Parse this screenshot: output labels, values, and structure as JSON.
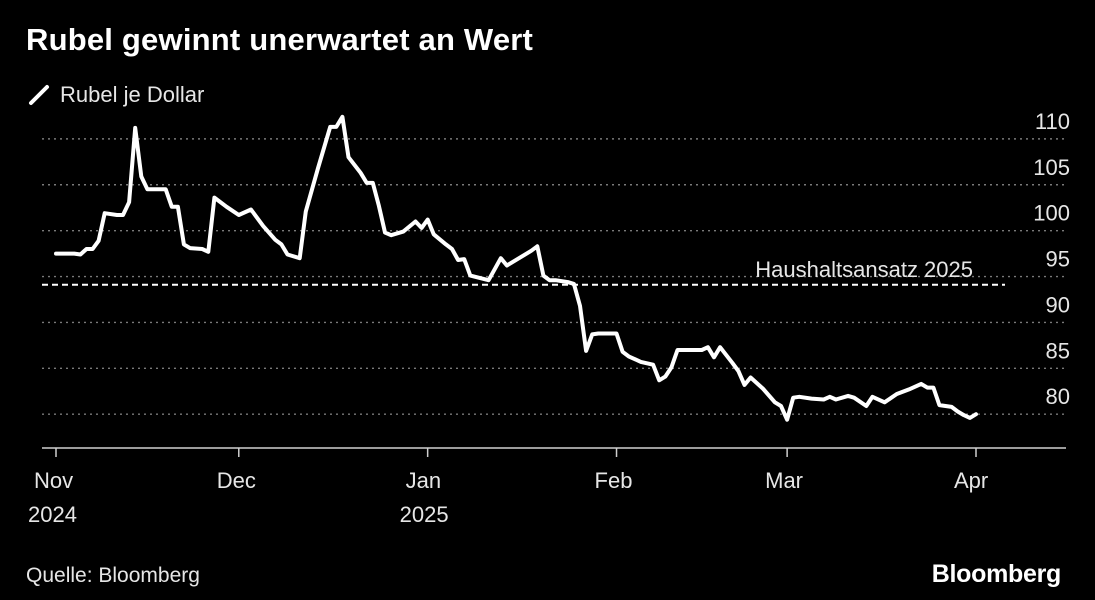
{
  "title": "Rubel gewinnt unerwartet an Wert",
  "legend_label": "Rubel je Dollar",
  "source": "Quelle: Bloomberg",
  "brand": "Bloomberg",
  "colors": {
    "background": "#000000",
    "line": "#ffffff",
    "grid": "#7a7a7a",
    "text": "#e6e6e6"
  },
  "chart_data": {
    "type": "line",
    "title": "Rubel gewinnt unerwartet an Wert",
    "xlabel": "",
    "ylabel": "",
    "ylim": [
      78.5,
      112.6
    ],
    "y_ticks": [
      80,
      85,
      90,
      95,
      100,
      105,
      110
    ],
    "x_ticks": [
      {
        "day": 0,
        "line1": "Nov",
        "line2": "2024"
      },
      {
        "day": 30,
        "line1": "Dec",
        "line2": ""
      },
      {
        "day": 61,
        "line1": "Jan",
        "line2": "2025"
      },
      {
        "day": 92,
        "line1": "Feb",
        "line2": ""
      },
      {
        "day": 120,
        "line1": "Mar",
        "line2": ""
      },
      {
        "day": 151,
        "line1": "Apr",
        "line2": ""
      }
    ],
    "reference_line": {
      "value": 94.1,
      "label": "Haushaltsansatz 2025"
    },
    "series": [
      {
        "name": "Rubel je Dollar",
        "x_unit": "days since 1 Nov 2024",
        "points": [
          [
            0,
            97.5
          ],
          [
            3,
            97.5
          ],
          [
            4,
            97.4
          ],
          [
            5,
            98.0
          ],
          [
            6,
            98.0
          ],
          [
            7,
            98.9
          ],
          [
            8,
            101.9
          ],
          [
            10,
            101.7
          ],
          [
            11,
            101.7
          ],
          [
            12,
            103.1
          ],
          [
            13,
            111.2
          ],
          [
            14,
            105.9
          ],
          [
            15,
            104.5
          ],
          [
            18,
            104.5
          ],
          [
            19,
            102.6
          ],
          [
            20,
            102.6
          ],
          [
            21,
            98.5
          ],
          [
            22,
            98.1
          ],
          [
            24,
            98.0
          ],
          [
            25,
            97.7
          ],
          [
            26,
            103.6
          ],
          [
            28,
            102.6
          ],
          [
            30,
            101.7
          ],
          [
            32,
            102.3
          ],
          [
            34,
            100.5
          ],
          [
            36,
            99.0
          ],
          [
            37,
            98.5
          ],
          [
            38,
            97.4
          ],
          [
            40,
            97.0
          ],
          [
            41,
            102.1
          ],
          [
            43,
            106.8
          ],
          [
            45,
            111.3
          ],
          [
            46,
            111.3
          ],
          [
            47,
            112.4
          ],
          [
            48,
            108.0
          ],
          [
            50,
            106.3
          ],
          [
            51,
            105.2
          ],
          [
            52,
            105.2
          ],
          [
            53,
            102.7
          ],
          [
            54,
            99.8
          ],
          [
            55,
            99.5
          ],
          [
            57,
            99.9
          ],
          [
            59,
            101.0
          ],
          [
            60,
            100.3
          ],
          [
            61,
            101.2
          ],
          [
            62,
            99.6
          ],
          [
            64,
            98.5
          ],
          [
            65,
            98.0
          ],
          [
            66,
            96.8
          ],
          [
            67,
            96.9
          ],
          [
            68,
            95.1
          ],
          [
            71,
            94.6
          ],
          [
            73,
            97.0
          ],
          [
            74,
            96.2
          ],
          [
            78,
            97.8
          ],
          [
            79,
            98.3
          ],
          [
            80,
            95.1
          ],
          [
            81,
            94.6
          ],
          [
            82,
            94.6
          ],
          [
            84,
            94.4
          ],
          [
            85,
            94.2
          ],
          [
            86,
            91.8
          ],
          [
            87,
            86.9
          ],
          [
            88,
            88.7
          ],
          [
            89,
            88.8
          ],
          [
            92,
            88.8
          ],
          [
            93,
            86.8
          ],
          [
            94,
            86.3
          ],
          [
            96,
            85.7
          ],
          [
            98,
            85.4
          ],
          [
            99,
            83.7
          ],
          [
            100,
            84.1
          ],
          [
            101,
            85.1
          ],
          [
            102,
            87.0
          ],
          [
            104,
            87.0
          ],
          [
            106,
            87.0
          ],
          [
            107,
            87.3
          ],
          [
            108,
            86.2
          ],
          [
            109,
            87.3
          ],
          [
            111,
            85.6
          ],
          [
            112,
            84.7
          ],
          [
            113,
            83.2
          ],
          [
            114,
            84.0
          ],
          [
            116,
            82.8
          ],
          [
            118,
            81.3
          ],
          [
            119,
            80.9
          ],
          [
            120,
            79.4
          ],
          [
            121,
            81.8
          ],
          [
            122,
            81.9
          ],
          [
            124,
            81.7
          ],
          [
            126,
            81.6
          ],
          [
            127,
            81.9
          ],
          [
            128,
            81.6
          ],
          [
            130,
            82.0
          ],
          [
            131,
            81.8
          ],
          [
            133,
            80.9
          ],
          [
            134,
            81.9
          ],
          [
            136,
            81.3
          ],
          [
            138,
            82.2
          ],
          [
            140,
            82.7
          ],
          [
            142,
            83.3
          ],
          [
            143,
            82.9
          ],
          [
            144,
            82.9
          ],
          [
            145,
            81.0
          ],
          [
            147,
            80.8
          ],
          [
            148,
            80.3
          ],
          [
            149,
            79.9
          ],
          [
            150,
            79.6
          ],
          [
            151,
            80.0
          ]
        ]
      }
    ]
  }
}
